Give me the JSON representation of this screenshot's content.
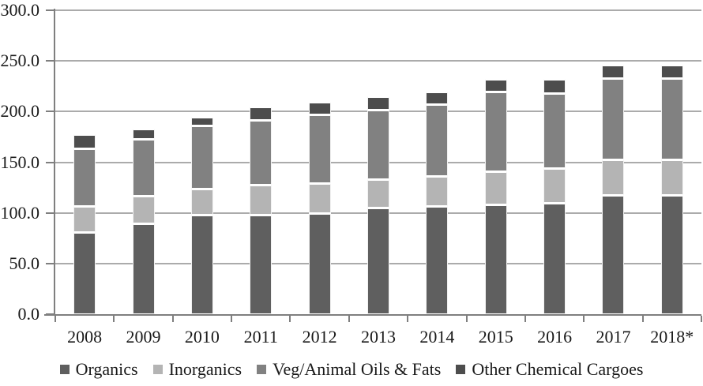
{
  "chart_data": {
    "type": "bar",
    "subtype": "stacked-vertical",
    "title": "",
    "xlabel": "",
    "ylabel": "",
    "categories": [
      "2008",
      "2009",
      "2010",
      "2011",
      "2012",
      "2013",
      "2014",
      "2015",
      "2016",
      "2017",
      "2018*"
    ],
    "series": [
      {
        "name": "Organics",
        "color": "#5f5f5f",
        "values": [
          81,
          90,
          98,
          98,
          100,
          105,
          107,
          108,
          110,
          118,
          118
        ]
      },
      {
        "name": "Inorganics",
        "color": "#b4b4b4",
        "values": [
          26,
          27,
          26,
          30,
          29,
          28,
          29,
          33,
          34,
          35,
          35
        ]
      },
      {
        "name": "Veg/Animal Oils & Fats",
        "color": "#818181",
        "values": [
          57,
          56,
          62,
          64,
          68,
          69,
          71,
          79,
          74,
          80,
          80
        ]
      },
      {
        "name": "Other Chemical Cargoes",
        "color": "#4d4d4d",
        "values": [
          14,
          10,
          9,
          13,
          13,
          13,
          13,
          12,
          14,
          13,
          13
        ]
      }
    ],
    "stack_totals": [
      178,
      183,
      195,
      205,
      210,
      215,
      220,
      232,
      232,
      246,
      246
    ],
    "ylim": [
      0,
      300
    ],
    "y_tick_step": 50,
    "y_tick_labels": [
      "0.0",
      "50.0",
      "100.0",
      "150.0",
      "200.0",
      "250.0",
      "300.0"
    ],
    "grid": true,
    "legend_position": "bottom",
    "colors": {
      "background": "#ffffff",
      "gridline": "#ababab",
      "axis": "#7f7f7f",
      "text": "#1a1a1a"
    }
  }
}
